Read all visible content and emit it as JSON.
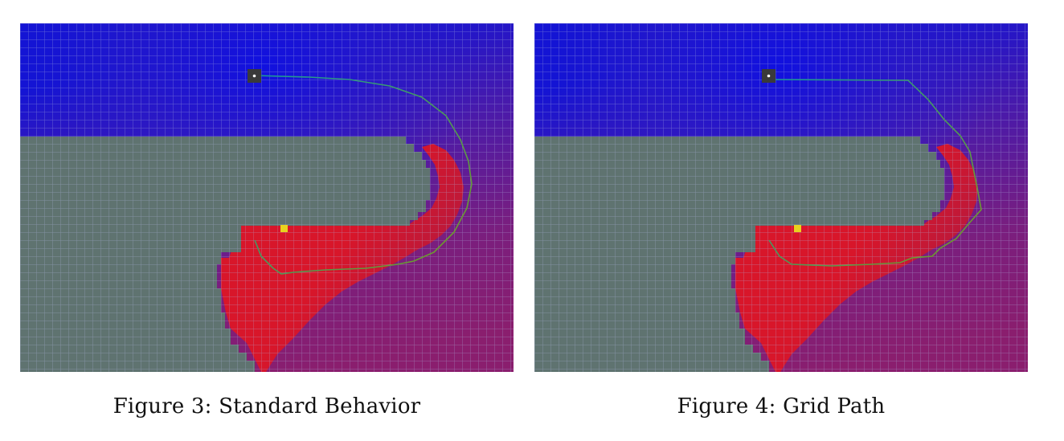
{
  "figures": [
    {
      "label": "Figure 3:",
      "title": "Standard Behavior"
    },
    {
      "label": "Figure 4:",
      "title": "Grid Path"
    }
  ],
  "colors": {
    "obstacle": "#5f7370",
    "grid_line": "#8f98c8",
    "near_field": "#d2162a",
    "far_field": "#1414d4",
    "start_marker": "#3a3a3a",
    "goal_marker": "#e8d21e",
    "path_start": "#1a9a9a",
    "path_end": "#7a9a1e"
  }
}
